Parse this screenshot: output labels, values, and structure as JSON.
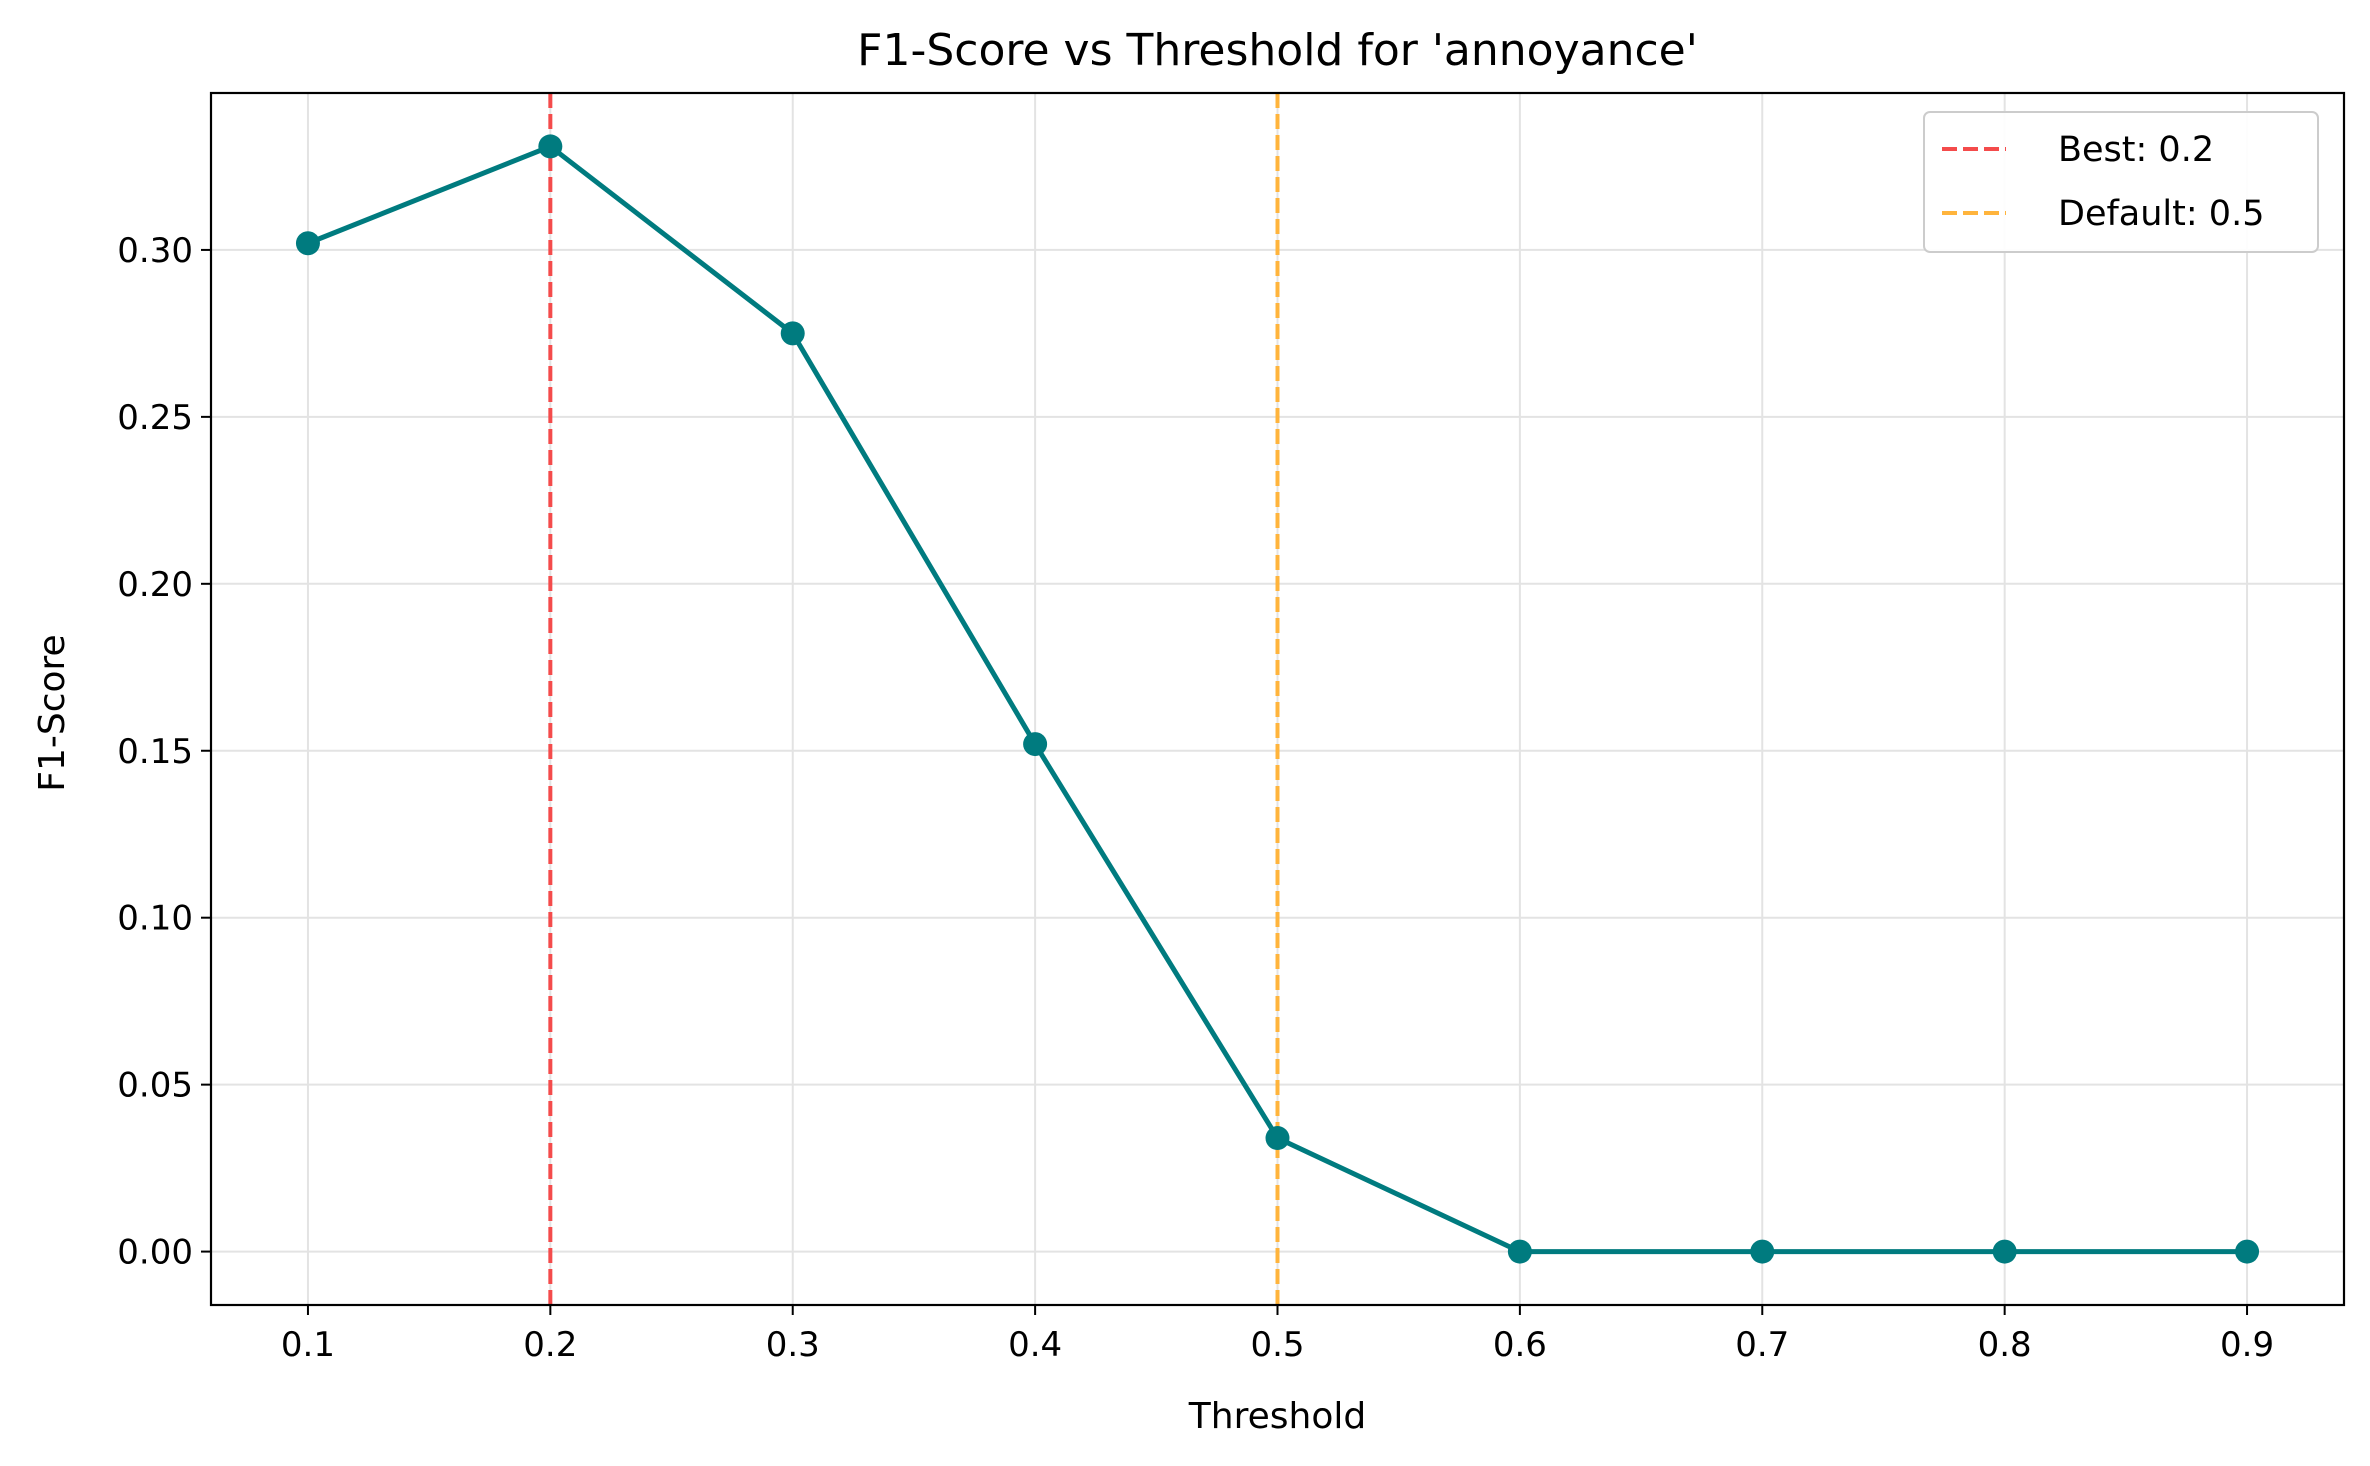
{
  "chart_data": {
    "type": "line",
    "title": "F1-Score vs Threshold for 'annoyance'",
    "xlabel": "Threshold",
    "ylabel": "F1-Score",
    "x": [
      0.1,
      0.2,
      0.3,
      0.4,
      0.5,
      0.6,
      0.7,
      0.8,
      0.9
    ],
    "series": [
      {
        "name": "",
        "color": "#007b7f",
        "marker": "circle",
        "values": [
          0.302,
          0.331,
          0.275,
          0.152,
          0.034,
          0.0,
          0.0,
          0.0,
          0.0
        ]
      }
    ],
    "xlim": [
      0.06,
      0.94
    ],
    "ylim": [
      -0.016,
      0.347
    ],
    "xticks": [
      0.1,
      0.2,
      0.3,
      0.4,
      0.5,
      0.6,
      0.7,
      0.8,
      0.9
    ],
    "xtick_labels": [
      "0.1",
      "0.2",
      "0.3",
      "0.4",
      "0.5",
      "0.6",
      "0.7",
      "0.8",
      "0.9"
    ],
    "yticks": [
      0.0,
      0.05,
      0.1,
      0.15,
      0.2,
      0.25,
      0.3
    ],
    "ytick_labels": [
      "0.00",
      "0.05",
      "0.10",
      "0.15",
      "0.20",
      "0.25",
      "0.30"
    ],
    "grid": true,
    "legend_position": "top-right",
    "reference_lines": [
      {
        "label": "Best: 0.2",
        "x": 0.2,
        "color": "#f44b4b",
        "style": "dashed"
      },
      {
        "label": "Default: 0.5",
        "x": 0.5,
        "color": "#ffb43c",
        "style": "dashed"
      }
    ]
  }
}
